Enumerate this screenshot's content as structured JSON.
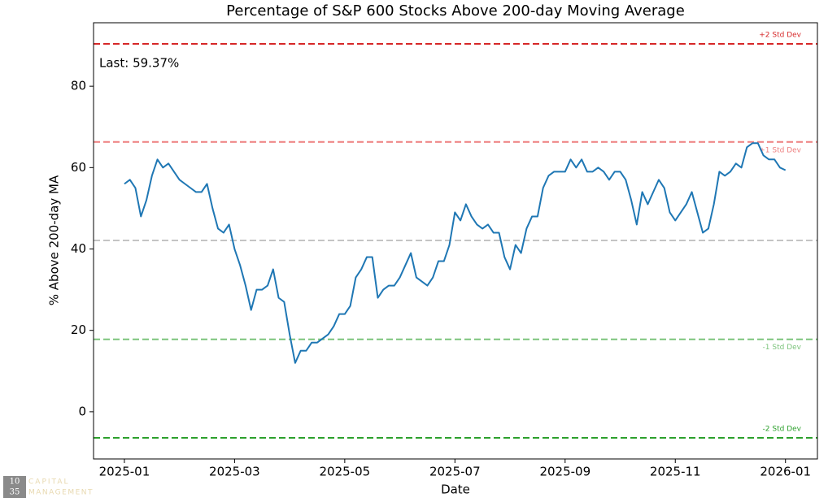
{
  "chart_data": {
    "type": "line",
    "title": "Percentage of S&P 600 Stocks Above 200-day Moving Average",
    "xlabel": "Date",
    "ylabel": "% Above 200-day MA",
    "annotation": "Last: 59.37%",
    "color": "#1f77b4",
    "x": [
      0,
      0.1,
      0.2,
      0.3,
      0.4,
      0.5,
      0.6,
      0.7,
      0.8,
      0.9,
      1,
      1.1,
      1.2,
      1.3,
      1.4,
      1.5,
      1.6,
      1.7,
      1.8,
      1.9,
      2,
      2.1,
      2.2,
      2.3,
      2.4,
      2.5,
      2.6,
      2.7,
      2.8,
      2.9,
      3,
      3.1,
      3.2,
      3.3,
      3.4,
      3.5,
      3.6,
      3.7,
      3.8,
      3.9,
      4,
      4.1,
      4.2,
      4.3,
      4.4,
      4.5,
      4.6,
      4.7,
      4.8,
      4.9,
      5,
      5.1,
      5.2,
      5.3,
      5.4,
      5.5,
      5.6,
      5.7,
      5.8,
      5.9,
      6,
      6.1,
      6.2,
      6.3,
      6.4,
      6.5,
      6.6,
      6.7,
      6.8,
      6.9,
      7,
      7.1,
      7.2,
      7.3,
      7.4,
      7.5,
      7.6,
      7.7,
      7.8,
      7.9,
      8,
      8.1,
      8.2,
      8.3,
      8.4,
      8.5,
      8.6,
      8.7,
      8.8,
      8.9,
      9,
      9.1,
      9.2,
      9.3,
      9.4,
      9.5,
      9.6,
      9.7,
      9.8,
      9.9,
      10,
      10.1,
      10.2,
      10.3,
      10.4,
      10.5,
      10.6,
      10.7,
      10.8,
      10.9,
      11,
      11.1,
      11.2,
      11.3,
      11.4,
      11.5,
      11.6,
      11.7,
      11.8,
      11.9,
      12
    ],
    "values": [
      56,
      57,
      55,
      48,
      52,
      58,
      62,
      60,
      61,
      59,
      57,
      56,
      55,
      54,
      54,
      56,
      50,
      45,
      44,
      46,
      40,
      36,
      31,
      25,
      30,
      30,
      31,
      35,
      28,
      27,
      19,
      12,
      15,
      15,
      17,
      17,
      18,
      19,
      21,
      24,
      24,
      26,
      33,
      35,
      38,
      38,
      28,
      30,
      31,
      31,
      33,
      36,
      39,
      33,
      32,
      31,
      33,
      37,
      37,
      41,
      49,
      47,
      51,
      48,
      46,
      45,
      46,
      44,
      44,
      38,
      35,
      41,
      39,
      45,
      48,
      48,
      55,
      58,
      59,
      59,
      59,
      62,
      60,
      62,
      59,
      59,
      60,
      59,
      57,
      59,
      59,
      57,
      52,
      46,
      54,
      51,
      54,
      57,
      55,
      49,
      47,
      49,
      51,
      54,
      49,
      44,
      45,
      51,
      59,
      58,
      59,
      61,
      60,
      65,
      66,
      66,
      63,
      62,
      62,
      60,
      59.37
    ],
    "xlim": [
      -0.56,
      12.58
    ],
    "xticks": [
      {
        "value": 0,
        "label": "2025-01"
      },
      {
        "value": 2,
        "label": "2025-03"
      },
      {
        "value": 4,
        "label": "2025-05"
      },
      {
        "value": 6,
        "label": "2025-07"
      },
      {
        "value": 8,
        "label": "2025-09"
      },
      {
        "value": 10,
        "label": "2025-11"
      },
      {
        "value": 12,
        "label": "2026-01"
      }
    ],
    "ylim": [
      -11.6,
      95.6
    ],
    "yticks": [
      0,
      20,
      40,
      60,
      80
    ],
    "reference_lines": [
      {
        "label": "+2 Std Dev",
        "value": 90.4,
        "color": "#d62728"
      },
      {
        "label": "+1 Std Dev",
        "value": 66.3,
        "color": "#ee7f7f"
      },
      {
        "value": 42.1,
        "color": "#c4c4c4"
      },
      {
        "label": "-1 Std Dev",
        "value": 17.8,
        "color": "#7cc47c"
      },
      {
        "label": "-2 Std Dev",
        "value": -6.4,
        "color": "#2ca02c"
      }
    ]
  },
  "logo": {
    "mark": [
      "10",
      "35"
    ],
    "name": [
      "CAPITAL",
      "MANAGEMENT"
    ]
  }
}
